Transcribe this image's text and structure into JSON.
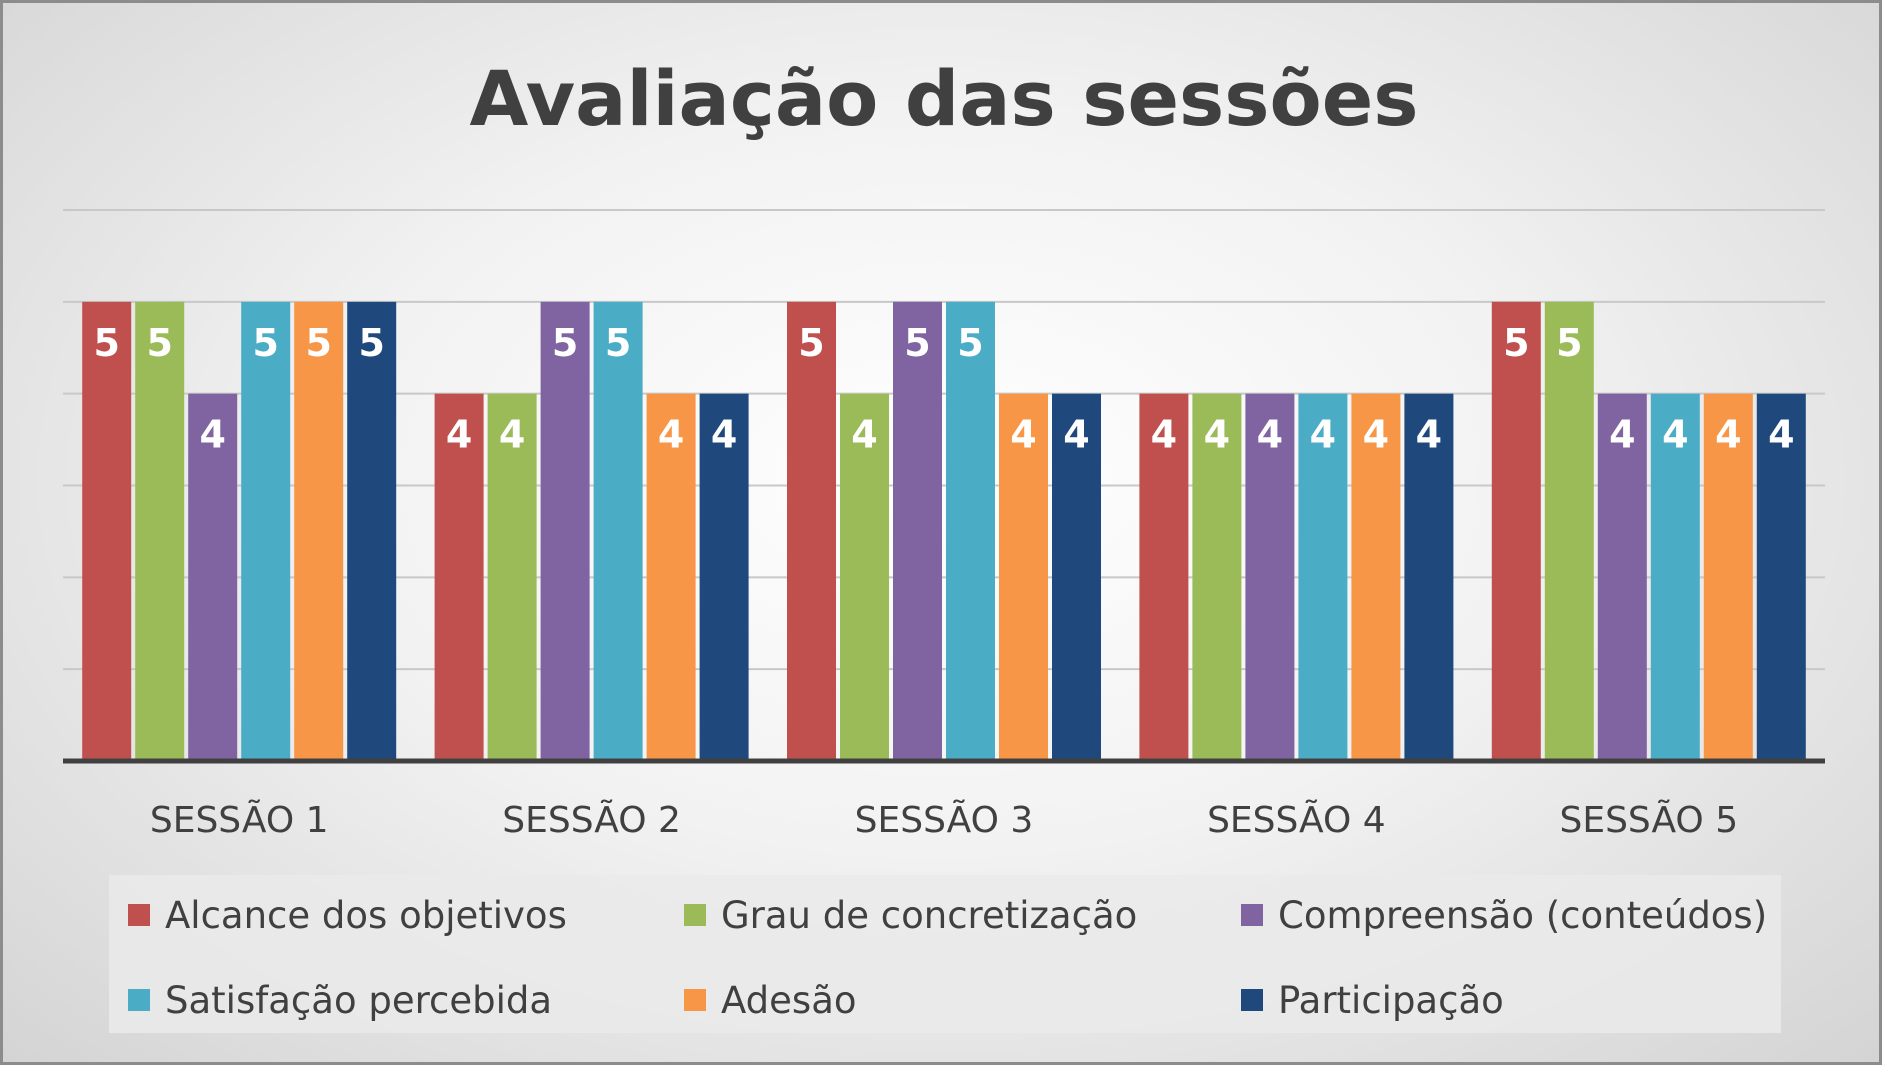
{
  "chart_data": {
    "type": "bar",
    "title": "Avaliação das sessões",
    "xlabel": "",
    "ylabel": "",
    "categories": [
      "SESSÃO 1",
      "SESSÃO 2",
      "SESSÃO 3",
      "SESSÃO 4",
      "SESSÃO 5"
    ],
    "series": [
      {
        "name": "Alcance dos objetivos",
        "color": "#c0504d",
        "values": [
          5,
          4,
          5,
          4,
          5
        ]
      },
      {
        "name": "Grau de concretização",
        "color": "#9bbb59",
        "values": [
          5,
          4,
          4,
          4,
          5
        ]
      },
      {
        "name": "Compreensão (conteúdos)",
        "color": "#8064a2",
        "values": [
          4,
          5,
          5,
          4,
          4
        ]
      },
      {
        "name": "Satisfação percebida",
        "color": "#4bacc6",
        "values": [
          5,
          5,
          5,
          4,
          4
        ]
      },
      {
        "name": "Adesão",
        "color": "#f79646",
        "values": [
          5,
          4,
          4,
          4,
          4
        ]
      },
      {
        "name": "Participação",
        "color": "#1f497d",
        "values": [
          5,
          4,
          4,
          4,
          4
        ]
      }
    ],
    "ylim": [
      0,
      6
    ],
    "grid": true,
    "data_labels": true,
    "legend_position": "bottom"
  }
}
